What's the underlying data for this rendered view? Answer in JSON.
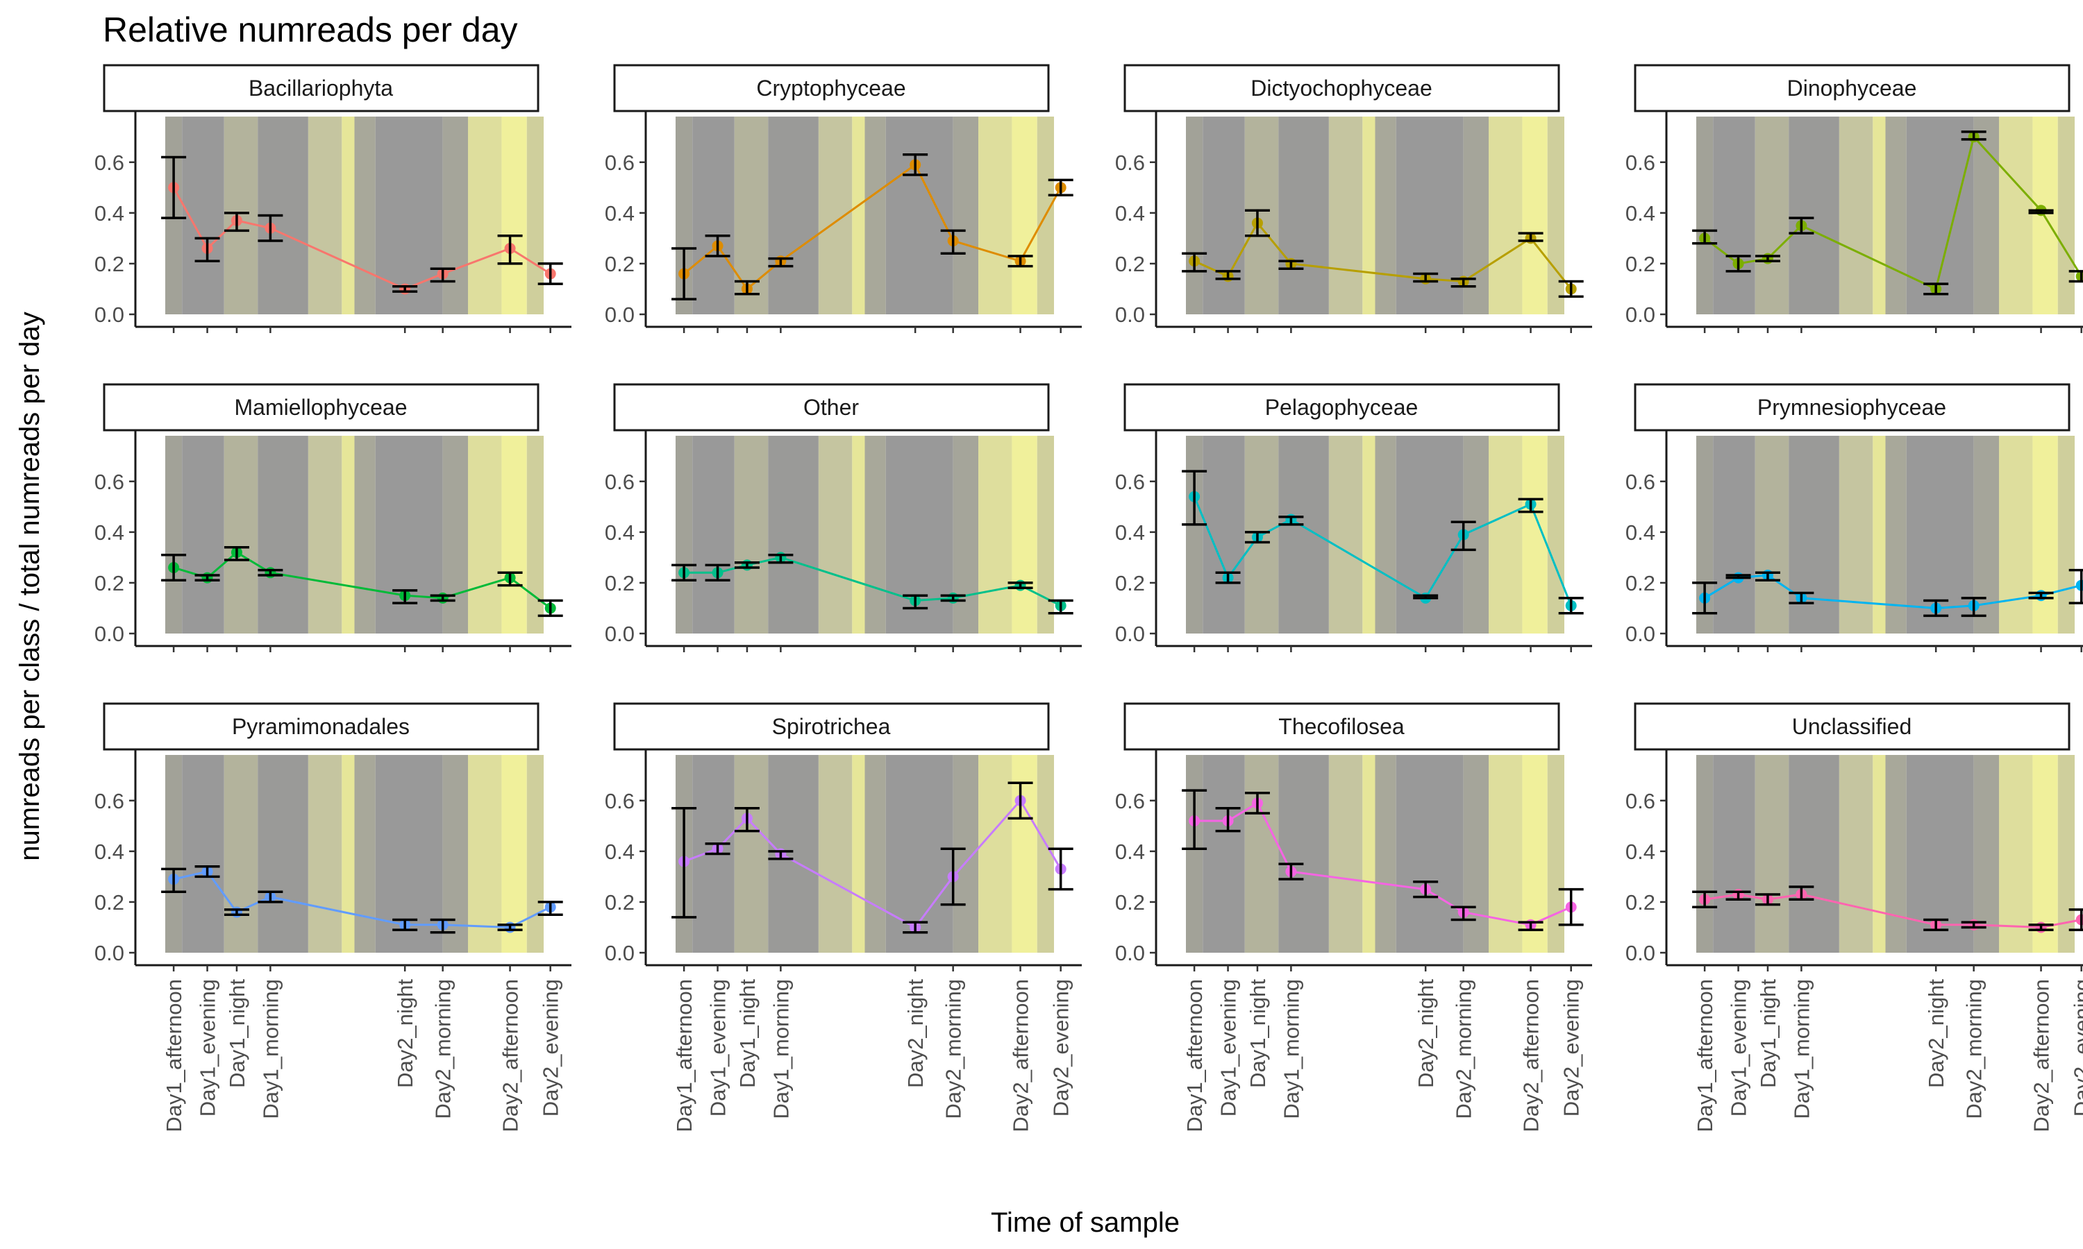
{
  "chart_data": {
    "type": "line",
    "title": "Relative numreads per day",
    "xlabel": "Time of sample",
    "ylabel": "numreads per class / total numreads per day",
    "ylim": [
      0,
      0.78
    ],
    "yticks": [
      "0.0",
      "0.2",
      "0.4",
      "0.6"
    ],
    "grid": false,
    "legend": "none",
    "x_domain_hours": [
      13,
      58
    ],
    "categories": [
      "Day1_afternoon",
      "Day1_evening",
      "Day1_night",
      "Day1_morning",
      "Day2_night",
      "Day2_morning",
      "Day2_afternoon",
      "Day2_evening"
    ],
    "x_hours": [
      14,
      18,
      21.5,
      25.5,
      41.5,
      46,
      54,
      58.8
    ],
    "light_bands": [
      {
        "start": 13,
        "end": 15,
        "color": "#a2a298"
      },
      {
        "start": 15,
        "end": 20,
        "color": "#999999"
      },
      {
        "start": 20,
        "end": 24,
        "color": "#b3b39c"
      },
      {
        "start": 24,
        "end": 30,
        "color": "#9a9a98"
      },
      {
        "start": 30,
        "end": 34,
        "color": "#c5c5a0"
      },
      {
        "start": 34,
        "end": 35.5,
        "color": "#e6e699"
      },
      {
        "start": 35.5,
        "end": 38,
        "color": "#a8a89a"
      },
      {
        "start": 38,
        "end": 46,
        "color": "#999999"
      },
      {
        "start": 46,
        "end": 49,
        "color": "#a5a59a"
      },
      {
        "start": 49,
        "end": 53,
        "color": "#dede9d"
      },
      {
        "start": 53,
        "end": 56,
        "color": "#f0f09b"
      },
      {
        "start": 56,
        "end": 58,
        "color": "#cfcf9c"
      },
      {
        "start": 58,
        "end": 60,
        "color": "#a4a49a"
      }
    ],
    "panels": [
      {
        "name": "Bacillariophyta",
        "color": "#F8766D",
        "values": [
          0.5,
          0.26,
          0.37,
          0.34,
          0.1,
          0.16,
          0.26,
          0.16
        ],
        "err_low": [
          0.38,
          0.21,
          0.33,
          0.29,
          0.09,
          0.13,
          0.2,
          0.12
        ],
        "err_high": [
          0.62,
          0.3,
          0.4,
          0.39,
          0.11,
          0.18,
          0.31,
          0.2
        ]
      },
      {
        "name": "Cryptophyceae",
        "color": "#DE8C00",
        "values": [
          0.16,
          0.27,
          0.1,
          0.21,
          0.59,
          0.29,
          0.21,
          0.5
        ],
        "err_low": [
          0.06,
          0.23,
          0.08,
          0.19,
          0.55,
          0.24,
          0.19,
          0.47
        ],
        "err_high": [
          0.26,
          0.31,
          0.13,
          0.22,
          0.63,
          0.33,
          0.23,
          0.53
        ]
      },
      {
        "name": "Dictyochophyceae",
        "color": "#B79F00",
        "values": [
          0.21,
          0.15,
          0.36,
          0.2,
          0.14,
          0.13,
          0.3,
          0.1
        ],
        "err_low": [
          0.17,
          0.14,
          0.31,
          0.18,
          0.13,
          0.11,
          0.29,
          0.07
        ],
        "err_high": [
          0.24,
          0.17,
          0.41,
          0.21,
          0.16,
          0.14,
          0.32,
          0.13
        ]
      },
      {
        "name": "Dinophyceae",
        "color": "#7CAE00",
        "values": [
          0.3,
          0.2,
          0.22,
          0.35,
          0.1,
          0.7,
          0.41,
          0.15
        ],
        "err_low": [
          0.28,
          0.17,
          0.21,
          0.32,
          0.08,
          0.69,
          0.4,
          0.13
        ],
        "err_high": [
          0.33,
          0.23,
          0.23,
          0.38,
          0.12,
          0.72,
          0.41,
          0.17
        ]
      },
      {
        "name": "Mamiellophyceae",
        "color": "#00BA38",
        "values": [
          0.26,
          0.22,
          0.32,
          0.24,
          0.15,
          0.14,
          0.22,
          0.1
        ],
        "err_low": [
          0.21,
          0.21,
          0.29,
          0.23,
          0.12,
          0.13,
          0.19,
          0.07
        ],
        "err_high": [
          0.31,
          0.23,
          0.34,
          0.25,
          0.17,
          0.15,
          0.24,
          0.13
        ]
      },
      {
        "name": "Other",
        "color": "#00C08B",
        "values": [
          0.24,
          0.24,
          0.27,
          0.3,
          0.13,
          0.14,
          0.19,
          0.11
        ],
        "err_low": [
          0.21,
          0.21,
          0.26,
          0.28,
          0.1,
          0.13,
          0.18,
          0.08
        ],
        "err_high": [
          0.27,
          0.27,
          0.28,
          0.31,
          0.15,
          0.15,
          0.2,
          0.13
        ]
      },
      {
        "name": "Pelagophyceae",
        "color": "#00BFC4",
        "values": [
          0.54,
          0.22,
          0.38,
          0.45,
          0.14,
          0.39,
          0.51,
          0.11
        ],
        "err_low": [
          0.43,
          0.2,
          0.36,
          0.43,
          0.14,
          0.33,
          0.48,
          0.08
        ],
        "err_high": [
          0.64,
          0.24,
          0.4,
          0.46,
          0.15,
          0.44,
          0.53,
          0.14
        ]
      },
      {
        "name": "Prymnesiophyceae",
        "color": "#00B4F0",
        "values": [
          0.14,
          0.22,
          0.23,
          0.14,
          0.1,
          0.11,
          0.15,
          0.19
        ],
        "err_low": [
          0.08,
          0.22,
          0.21,
          0.12,
          0.07,
          0.07,
          0.14,
          0.12
        ],
        "err_high": [
          0.2,
          0.23,
          0.24,
          0.16,
          0.13,
          0.14,
          0.16,
          0.25
        ]
      },
      {
        "name": "Pyramimonadales",
        "color": "#619CFF",
        "values": [
          0.29,
          0.32,
          0.16,
          0.22,
          0.11,
          0.11,
          0.1,
          0.18
        ],
        "err_low": [
          0.24,
          0.3,
          0.15,
          0.2,
          0.09,
          0.08,
          0.09,
          0.15
        ],
        "err_high": [
          0.33,
          0.34,
          0.17,
          0.24,
          0.13,
          0.13,
          0.11,
          0.2
        ]
      },
      {
        "name": "Spirotrichea",
        "color": "#C77CFF",
        "values": [
          0.36,
          0.41,
          0.53,
          0.39,
          0.1,
          0.3,
          0.6,
          0.33
        ],
        "err_low": [
          0.14,
          0.39,
          0.48,
          0.37,
          0.08,
          0.19,
          0.53,
          0.25
        ],
        "err_high": [
          0.57,
          0.43,
          0.57,
          0.4,
          0.12,
          0.41,
          0.67,
          0.41
        ]
      },
      {
        "name": "Thecofilosea",
        "color": "#F564E3",
        "values": [
          0.52,
          0.52,
          0.59,
          0.32,
          0.25,
          0.16,
          0.11,
          0.18
        ],
        "err_low": [
          0.41,
          0.48,
          0.55,
          0.29,
          0.22,
          0.13,
          0.09,
          0.11
        ],
        "err_high": [
          0.64,
          0.57,
          0.63,
          0.35,
          0.28,
          0.18,
          0.12,
          0.25
        ]
      },
      {
        "name": "Unclassified",
        "color": "#FF64B0",
        "values": [
          0.21,
          0.23,
          0.21,
          0.23,
          0.11,
          0.11,
          0.1,
          0.13
        ],
        "err_low": [
          0.18,
          0.21,
          0.19,
          0.21,
          0.09,
          0.1,
          0.09,
          0.09
        ],
        "err_high": [
          0.24,
          0.24,
          0.23,
          0.26,
          0.13,
          0.12,
          0.11,
          0.17
        ]
      }
    ]
  }
}
